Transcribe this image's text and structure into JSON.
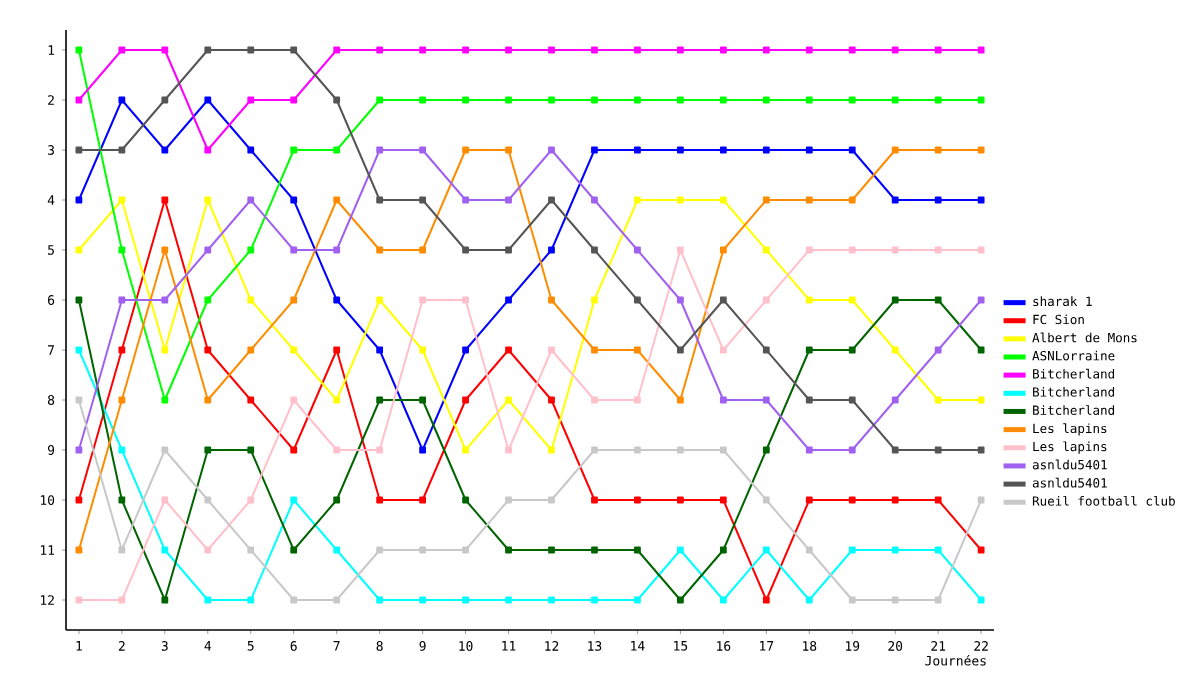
{
  "chart_data": {
    "type": "line",
    "xlabel": "Journées",
    "categories": [
      "1",
      "2",
      "3",
      "4",
      "5",
      "6",
      "7",
      "8",
      "9",
      "10",
      "11",
      "12",
      "13",
      "14",
      "15",
      "16",
      "17",
      "18",
      "19",
      "20",
      "21",
      "22"
    ],
    "ylim": [
      12.6,
      0.6
    ],
    "yticks": [
      1,
      2,
      3,
      4,
      5,
      6,
      7,
      8,
      9,
      10,
      11,
      12
    ],
    "legend": "right",
    "marker": "square",
    "line_style": "solid",
    "series": [
      {
        "name": "sharak 1",
        "color": "#0000ff",
        "values": [
          4,
          2,
          3,
          2,
          3,
          4,
          6,
          7,
          9,
          7,
          6,
          5,
          3,
          3,
          3,
          3,
          3,
          3,
          3,
          4,
          4,
          4
        ]
      },
      {
        "name": "FC Sion",
        "color": "#ff0000",
        "values": [
          10,
          7,
          4,
          7,
          8,
          9,
          7,
          10,
          10,
          8,
          7,
          8,
          10,
          10,
          10,
          10,
          12,
          10,
          10,
          10,
          10,
          11
        ]
      },
      {
        "name": "Albert de Mons",
        "color": "#ffff00",
        "values": [
          5,
          4,
          7,
          4,
          6,
          7,
          8,
          6,
          7,
          9,
          8,
          9,
          6,
          4,
          4,
          4,
          5,
          6,
          6,
          7,
          8,
          8
        ]
      },
      {
        "name": "ASNLorraine",
        "color": "#00ff00",
        "values": [
          1,
          5,
          8,
          6,
          5,
          3,
          3,
          2,
          2,
          2,
          2,
          2,
          2,
          2,
          2,
          2,
          2,
          2,
          2,
          2,
          2,
          2
        ]
      },
      {
        "name": "Bitcherland",
        "color": "#ff00ff",
        "values": [
          2,
          1,
          1,
          3,
          2,
          2,
          1,
          1,
          1,
          1,
          1,
          1,
          1,
          1,
          1,
          1,
          1,
          1,
          1,
          1,
          1,
          1
        ]
      },
      {
        "name": "Bitcherland",
        "color": "#00ffff",
        "values": [
          7,
          9,
          11,
          12,
          12,
          10,
          11,
          12,
          12,
          12,
          12,
          12,
          12,
          12,
          11,
          12,
          11,
          12,
          11,
          11,
          11,
          12
        ]
      },
      {
        "name": "Bitcherland",
        "color": "#006400",
        "values": [
          6,
          10,
          12,
          9,
          9,
          11,
          10,
          8,
          8,
          10,
          11,
          11,
          11,
          11,
          12,
          11,
          9,
          7,
          7,
          6,
          6,
          7
        ]
      },
      {
        "name": "Les lapins",
        "color": "#ff8c00",
        "values": [
          11,
          8,
          5,
          8,
          7,
          6,
          4,
          5,
          5,
          3,
          3,
          6,
          7,
          7,
          8,
          5,
          4,
          4,
          4,
          3,
          3,
          3
        ]
      },
      {
        "name": "Les lapins",
        "color": "#ffc0cb",
        "values": [
          12,
          12,
          10,
          11,
          10,
          8,
          9,
          9,
          6,
          6,
          9,
          7,
          8,
          8,
          5,
          7,
          6,
          5,
          5,
          5,
          5,
          5
        ]
      },
      {
        "name": "asnldu5401",
        "color": "#a060f0",
        "values": [
          9,
          6,
          6,
          5,
          4,
          5,
          5,
          3,
          3,
          4,
          4,
          3,
          4,
          5,
          6,
          8,
          8,
          9,
          9,
          8,
          7,
          6
        ]
      },
      {
        "name": "asnldu5401",
        "color": "#555555",
        "values": [
          3,
          3,
          2,
          1,
          1,
          1,
          2,
          4,
          4,
          5,
          5,
          4,
          5,
          6,
          7,
          6,
          7,
          8,
          8,
          9,
          9,
          9
        ]
      },
      {
        "name": "Rueil football club",
        "color": "#c8c8c8",
        "values": [
          8,
          11,
          9,
          10,
          11,
          12,
          12,
          11,
          11,
          11,
          10,
          10,
          9,
          9,
          9,
          9,
          10,
          11,
          12,
          12,
          12,
          10
        ]
      }
    ]
  }
}
